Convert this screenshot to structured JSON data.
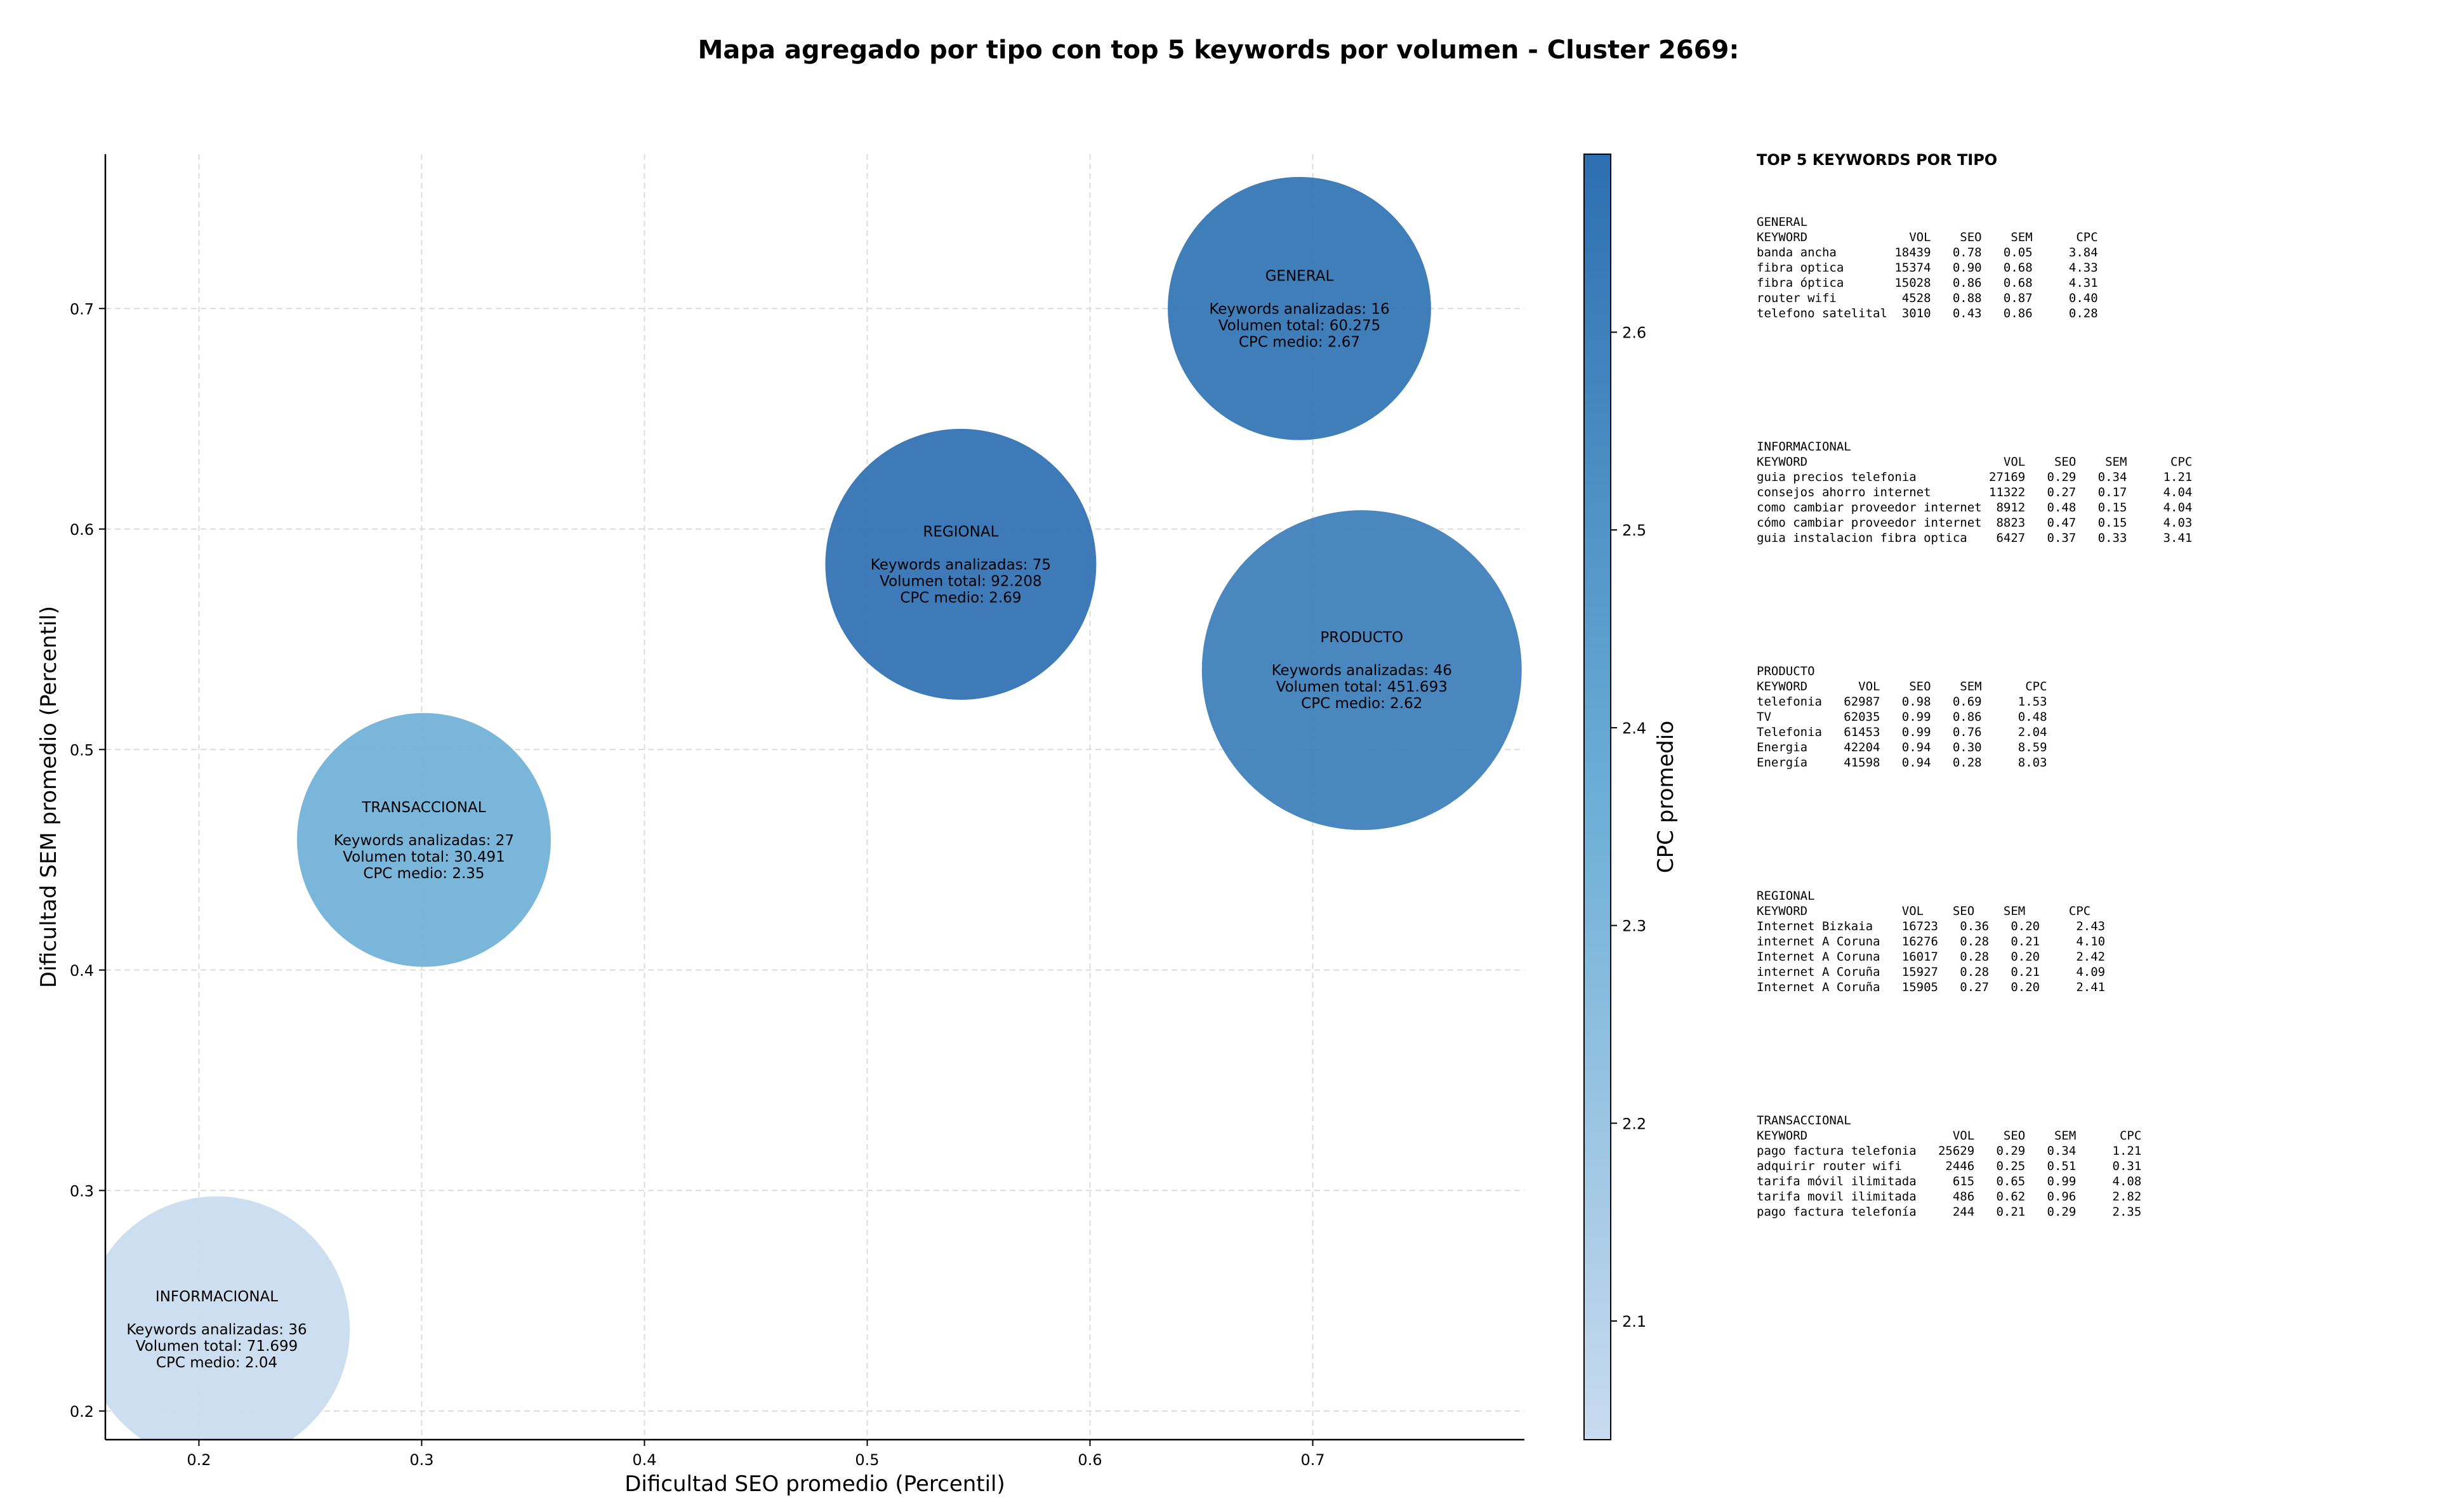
{
  "chart_data": {
    "type": "scatter",
    "title": "Mapa agregado por tipo con top 5 keywords por volumen - Cluster 2669:",
    "xlabel": "Dificultad SEO promedio (Percentil)",
    "ylabel": "Dificultad SEM promedio (Percentil)",
    "xlim": [
      0.158,
      0.795
    ],
    "ylim": [
      0.187,
      0.77
    ],
    "xticks": [
      0.2,
      0.3,
      0.4,
      0.5,
      0.6,
      0.7
    ],
    "yticks": [
      0.2,
      0.3,
      0.4,
      0.5,
      0.6,
      0.7
    ],
    "xtick_labels": [
      "0.2",
      "0.3",
      "0.4",
      "0.5",
      "0.6",
      "0.7"
    ],
    "ytick_labels": [
      "0.2",
      "0.3",
      "0.4",
      "0.5",
      "0.6",
      "0.7"
    ],
    "grid": true,
    "colorbar": {
      "label": "CPC promedio",
      "range": [
        2.04,
        2.69
      ],
      "ticks": [
        2.1,
        2.2,
        2.3,
        2.4,
        2.5,
        2.6
      ],
      "tick_labels": [
        "2.1",
        "2.2",
        "2.3",
        "2.4",
        "2.5",
        "2.6"
      ],
      "colors": [
        "#c8dbef",
        "#2c6fb1"
      ]
    },
    "points": [
      {
        "name": "GENERAL",
        "x": 0.694,
        "y": 0.7,
        "cpc": 2.67,
        "volume": 60275,
        "label_lines": [
          "GENERAL",
          "",
          "Keywords analizadas: 16",
          "Volumen total: 60.275",
          "CPC medio: 2.67"
        ]
      },
      {
        "name": "REGIONAL",
        "x": 0.542,
        "y": 0.584,
        "cpc": 2.69,
        "volume": 92208,
        "label_lines": [
          "REGIONAL",
          "",
          "Keywords analizadas: 75",
          "Volumen total: 92.208",
          "CPC medio: 2.69"
        ]
      },
      {
        "name": "PRODUCTO",
        "x": 0.722,
        "y": 0.536,
        "cpc": 2.62,
        "volume": 451693,
        "label_lines": [
          "PRODUCTO",
          "",
          "Keywords analizadas: 46",
          "Volumen total: 451.693",
          "CPC medio: 2.62"
        ]
      },
      {
        "name": "TRANSACCIONAL",
        "x": 0.301,
        "y": 0.459,
        "cpc": 2.35,
        "volume": 30491,
        "label_lines": [
          "TRANSACCIONAL",
          "",
          "Keywords analizadas: 27",
          "Volumen total: 30.491",
          "CPC medio: 2.35"
        ]
      },
      {
        "name": "INFORMACIONAL",
        "x": 0.208,
        "y": 0.237,
        "cpc": 2.04,
        "volume": 71699,
        "label_lines": [
          "INFORMACIONAL",
          "",
          "Keywords analizadas: 36",
          "Volumen total: 71.699",
          "CPC medio: 2.04"
        ]
      }
    ]
  },
  "panel": {
    "title": "TOP 5 KEYWORDS POR TIPO",
    "blocks": [
      {
        "lines": [
          "GENERAL",
          "KEYWORD              VOL    SEO    SEM      CPC",
          "banda ancha        18439   0.78   0.05     3.84",
          "fibra optica       15374   0.90   0.68     4.33",
          "fibra óptica       15028   0.86   0.68     4.31",
          "router wifi         4528   0.88   0.87     0.40",
          "telefono satelital  3010   0.43   0.86     0.28"
        ]
      },
      {
        "lines": [
          "INFORMACIONAL",
          "KEYWORD                           VOL    SEO    SEM      CPC",
          "guia precios telefonia          27169   0.29   0.34     1.21",
          "consejos ahorro internet        11322   0.27   0.17     4.04",
          "como cambiar proveedor internet  8912   0.48   0.15     4.04",
          "cómo cambiar proveedor internet  8823   0.47   0.15     4.03",
          "guia instalacion fibra optica    6427   0.37   0.33     3.41"
        ]
      },
      {
        "lines": [
          "PRODUCTO",
          "KEYWORD       VOL    SEO    SEM      CPC",
          "telefonia   62987   0.98   0.69     1.53",
          "TV          62035   0.99   0.86     0.48",
          "Telefonia   61453   0.99   0.76     2.04",
          "Energia     42204   0.94   0.30     8.59",
          "Energía     41598   0.94   0.28     8.03"
        ]
      },
      {
        "lines": [
          "REGIONAL",
          "KEYWORD             VOL    SEO    SEM      CPC",
          "Internet Bizkaia    16723   0.36   0.20     2.43",
          "internet A Coruna   16276   0.28   0.21     4.10",
          "Internet A Coruna   16017   0.28   0.20     2.42",
          "internet A Coruña   15927   0.28   0.21     4.09",
          "Internet A Coruña   15905   0.27   0.20     2.41"
        ]
      },
      {
        "lines": [
          "TRANSACCIONAL",
          "KEYWORD                    VOL    SEO    SEM      CPC",
          "pago factura telefonia   25629   0.29   0.34     1.21",
          "adquirir router wifi      2446   0.25   0.51     0.31",
          "tarifa móvil ilimitada     615   0.65   0.99     4.08",
          "tarifa movil ilimitada     486   0.62   0.96     2.82",
          "pago factura telefonía     244   0.21   0.29     2.35"
        ]
      }
    ]
  }
}
